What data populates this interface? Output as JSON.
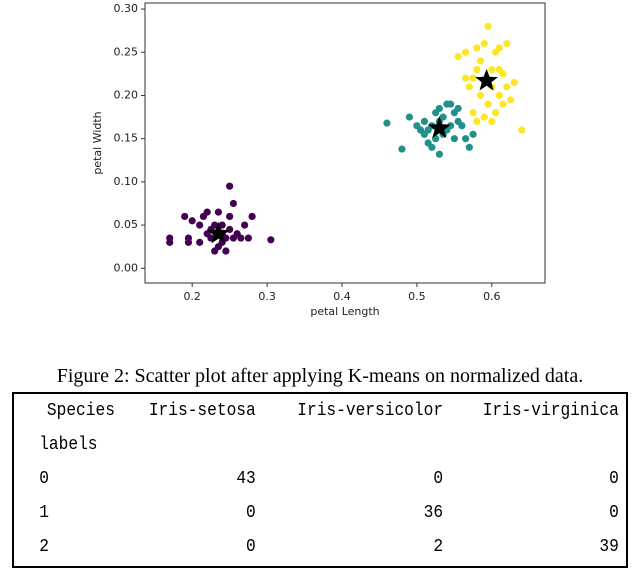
{
  "chart_data": {
    "type": "scatter",
    "xlabel": "petal Length",
    "ylabel": "petal Width",
    "xlim": [
      0.137,
      0.671
    ],
    "ylim": [
      -0.017,
      0.307
    ],
    "xticks": [
      0.2,
      0.3,
      0.4,
      0.5,
      0.6
    ],
    "yticks": [
      {
        "value": 0,
        "label": "0.00"
      },
      {
        "value": 0.05,
        "label": "0.05"
      },
      {
        "value": 0.1,
        "label": "0.10"
      },
      {
        "value": 0.15,
        "label": "0.15"
      },
      {
        "value": 0.2,
        "label": "0.20"
      },
      {
        "value": 0.25,
        "label": "0.25"
      },
      {
        "value": 0.3,
        "label": "0.30"
      }
    ],
    "series": [
      {
        "color": "#440154",
        "marker": "circle",
        "x": [
          0.17,
          0.17,
          0.19,
          0.195,
          0.195,
          0.21,
          0.21,
          0.215,
          0.22,
          0.225,
          0.225,
          0.23,
          0.23,
          0.235,
          0.24,
          0.24,
          0.245,
          0.245,
          0.25,
          0.25,
          0.25,
          0.255,
          0.255,
          0.26,
          0.265,
          0.27,
          0.275,
          0.28,
          0.305,
          0.2,
          0.22,
          0.24,
          0.235
        ],
        "values": [
          0.035,
          0.03,
          0.06,
          0.035,
          0.03,
          0.05,
          0.03,
          0.06,
          0.04,
          0.045,
          0.035,
          0.05,
          0.02,
          0.065,
          0.03,
          0.04,
          0.035,
          0.02,
          0.095,
          0.045,
          0.06,
          0.035,
          0.075,
          0.04,
          0.035,
          0.05,
          0.035,
          0.06,
          0.033,
          0.055,
          0.065,
          0.05,
          0.025
        ]
      },
      {
        "color": "#21918c",
        "marker": "circle",
        "x": [
          0.46,
          0.48,
          0.49,
          0.505,
          0.51,
          0.51,
          0.515,
          0.52,
          0.52,
          0.525,
          0.525,
          0.53,
          0.53,
          0.53,
          0.535,
          0.535,
          0.54,
          0.54,
          0.545,
          0.55,
          0.55,
          0.555,
          0.555,
          0.56,
          0.565,
          0.57,
          0.575,
          0.545,
          0.5,
          0.515
        ],
        "values": [
          0.168,
          0.138,
          0.175,
          0.16,
          0.17,
          0.155,
          0.16,
          0.165,
          0.14,
          0.18,
          0.15,
          0.185,
          0.17,
          0.132,
          0.155,
          0.175,
          0.16,
          0.19,
          0.165,
          0.18,
          0.15,
          0.17,
          0.185,
          0.165,
          0.15,
          0.14,
          0.155,
          0.19,
          0.165,
          0.145
        ]
      },
      {
        "color": "#fde725",
        "marker": "circle",
        "x": [
          0.555,
          0.565,
          0.57,
          0.575,
          0.58,
          0.58,
          0.585,
          0.585,
          0.59,
          0.59,
          0.595,
          0.595,
          0.6,
          0.6,
          0.605,
          0.605,
          0.61,
          0.61,
          0.615,
          0.615,
          0.62,
          0.62,
          0.625,
          0.63,
          0.575,
          0.58,
          0.59,
          0.6,
          0.64,
          0.565,
          0.61
        ],
        "values": [
          0.245,
          0.25,
          0.21,
          0.22,
          0.23,
          0.255,
          0.2,
          0.24,
          0.215,
          0.26,
          0.28,
          0.19,
          0.23,
          0.21,
          0.25,
          0.18,
          0.2,
          0.23,
          0.19,
          0.225,
          0.26,
          0.21,
          0.195,
          0.215,
          0.18,
          0.17,
          0.175,
          0.17,
          0.16,
          0.22,
          0.255
        ]
      },
      {
        "color": "#000000",
        "marker": "star",
        "x": [
          0.235,
          0.53,
          0.593
        ],
        "values": [
          0.04,
          0.162,
          0.217
        ]
      }
    ]
  },
  "caption": "Figure 2: Scatter plot after applying K-means on normalized data.",
  "table": {
    "columns_name": "Species",
    "index_name": "labels",
    "columns": [
      "Iris-setosa",
      "Iris-versicolor",
      "Iris-virginica"
    ],
    "rows": [
      {
        "label": "0",
        "values": [
          43,
          0,
          0
        ]
      },
      {
        "label": "1",
        "values": [
          0,
          36,
          0
        ]
      },
      {
        "label": "2",
        "values": [
          0,
          2,
          39
        ]
      }
    ]
  }
}
